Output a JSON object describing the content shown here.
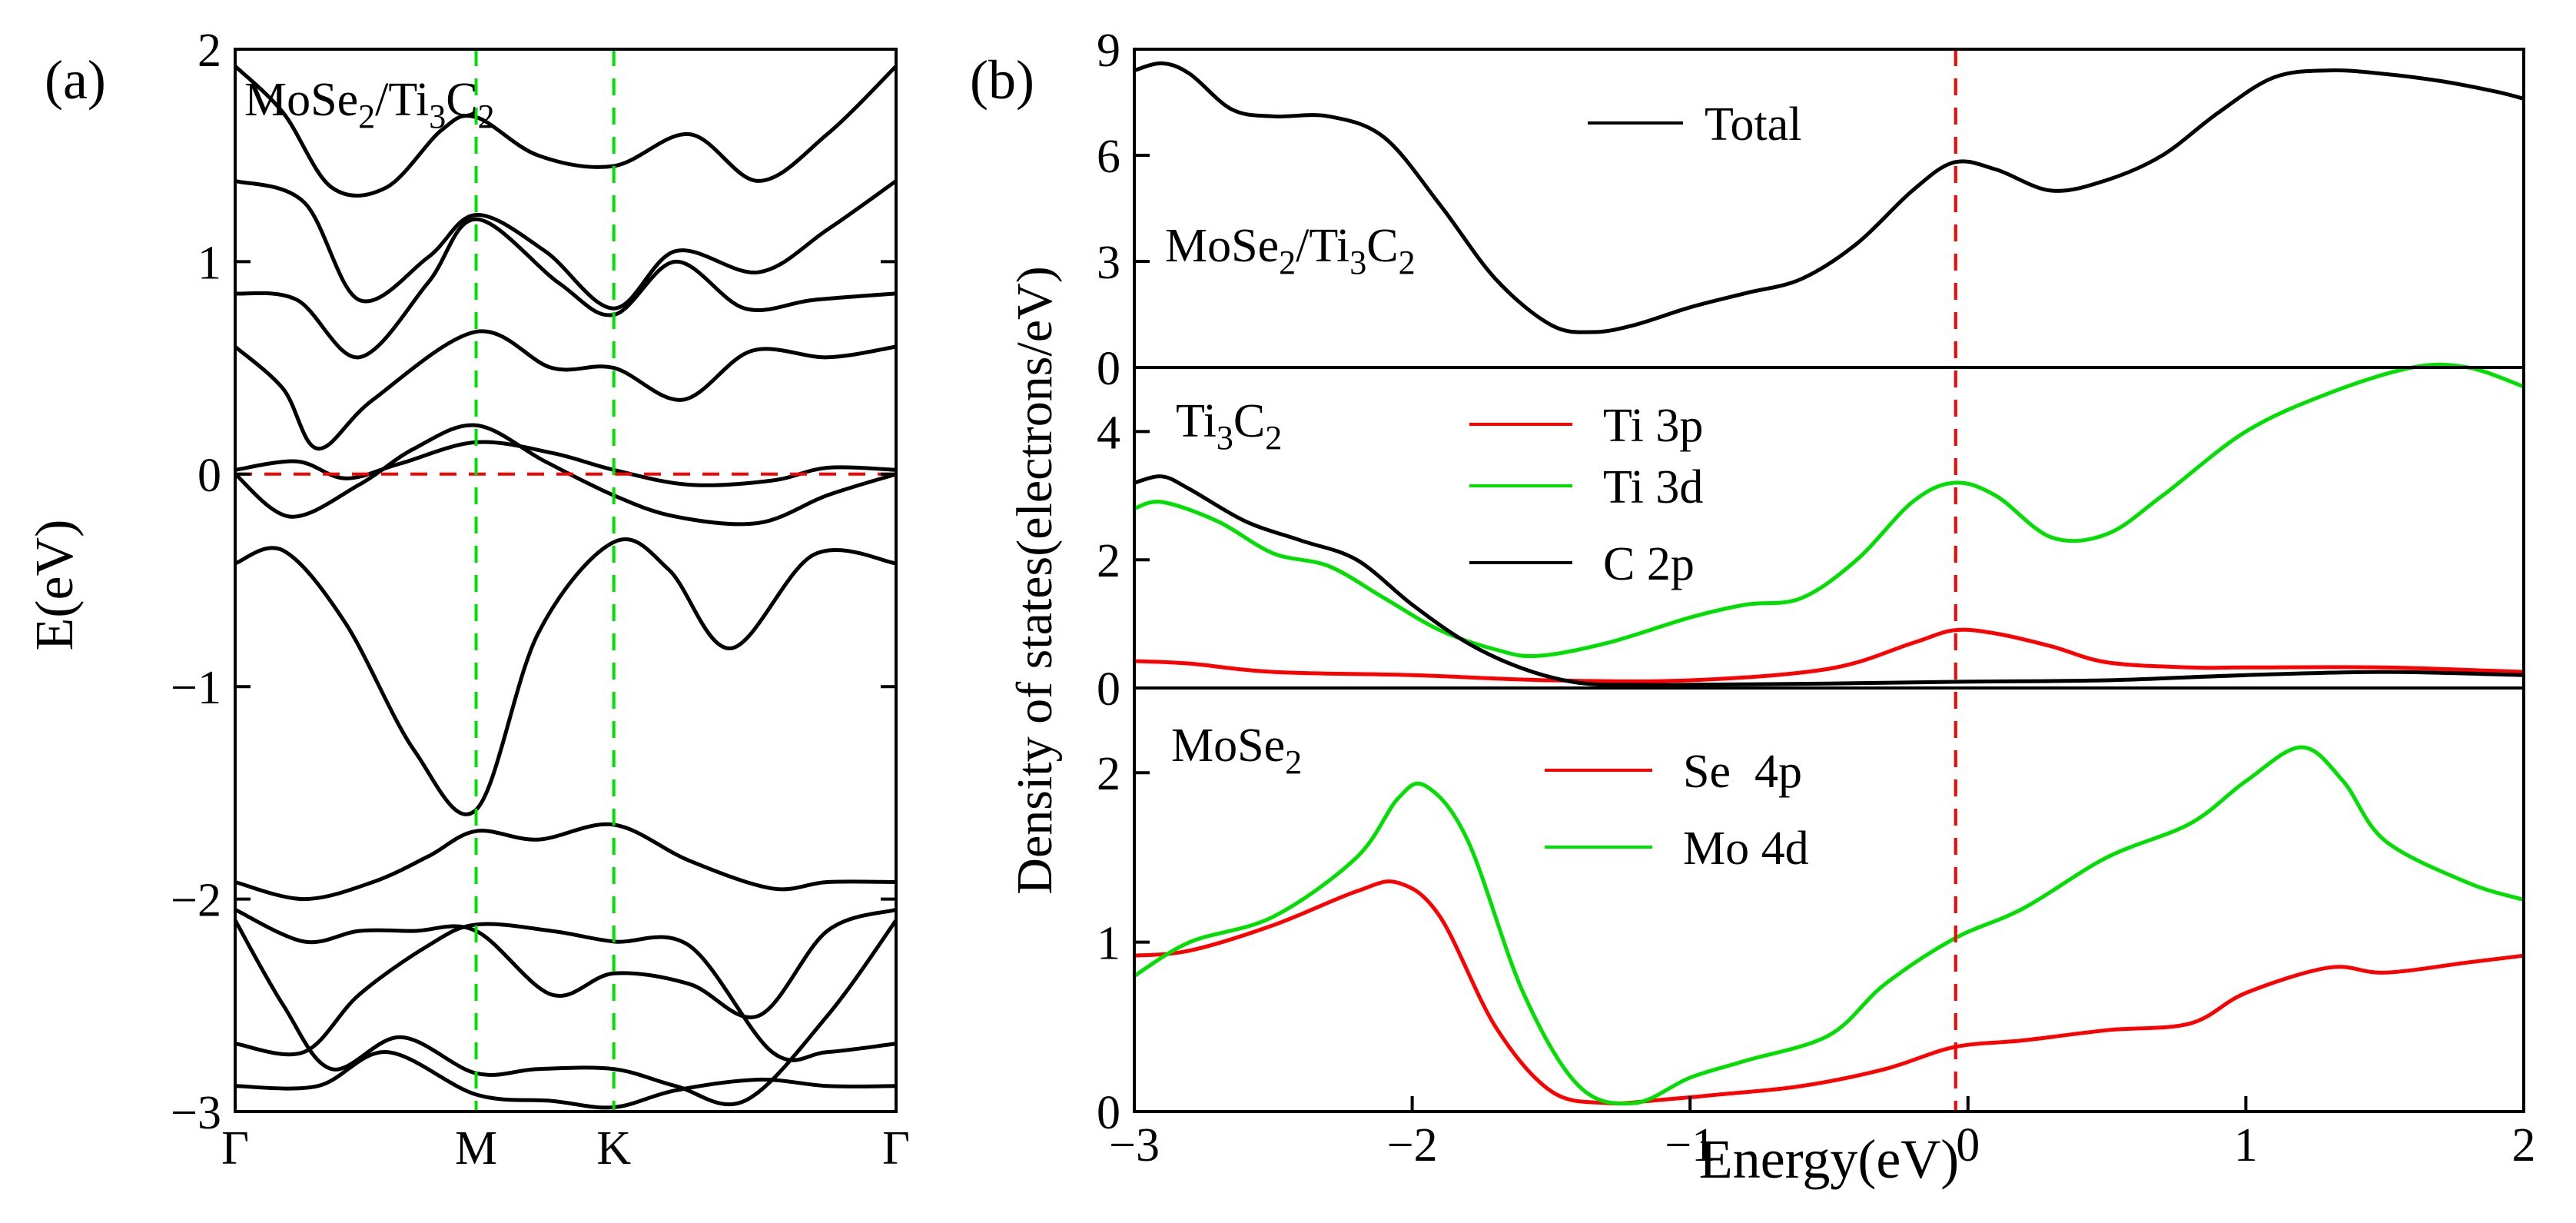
{
  "colors": {
    "black": "#000000",
    "red": "#ff0000",
    "green": "#00e000"
  },
  "chart_data": [
    {
      "type": "line",
      "panel_label": "(a)",
      "title": "MoSe2/Ti3C2",
      "title_parts": {
        "a": "MoSe",
        "a_sub": "2",
        "b": "/Ti",
        "b_sub": "3",
        "c": "C",
        "c_sub": "2"
      },
      "ylabel": "E(eV)",
      "ylim": [
        -3,
        2
      ],
      "yticks": [
        2,
        1,
        0,
        -1,
        -2,
        -3
      ],
      "ytick_labels": [
        "2",
        "1",
        "0",
        "−1",
        "−2",
        "−3"
      ],
      "xlim": [
        0,
        4.8
      ],
      "xticks": [
        0,
        1.75,
        2.75,
        4.8
      ],
      "xtick_labels": [
        "Γ",
        "M",
        "K",
        "Γ"
      ],
      "fermi_level": 0,
      "k_markers": [
        1.75,
        2.75
      ],
      "bands": [
        [
          [
            0,
            -0.42
          ],
          [
            0.35,
            -0.36
          ],
          [
            0.8,
            -0.7
          ],
          [
            1.3,
            -1.3
          ],
          [
            1.75,
            -1.58
          ],
          [
            2.2,
            -0.75
          ],
          [
            2.75,
            -0.32
          ],
          [
            3.15,
            -0.45
          ],
          [
            3.6,
            -0.82
          ],
          [
            4.2,
            -0.38
          ],
          [
            4.8,
            -0.42
          ]
        ],
        [
          [
            0,
            0
          ],
          [
            0.4,
            -0.2
          ],
          [
            0.9,
            -0.05
          ],
          [
            1.3,
            0.12
          ],
          [
            1.75,
            0.23
          ],
          [
            2.25,
            0.06
          ],
          [
            2.75,
            -0.1
          ],
          [
            3.2,
            -0.2
          ],
          [
            3.8,
            -0.23
          ],
          [
            4.3,
            -0.1
          ],
          [
            4.8,
            0
          ]
        ],
        [
          [
            0,
            0.02
          ],
          [
            0.45,
            0.06
          ],
          [
            0.8,
            -0.02
          ],
          [
            1.2,
            0.05
          ],
          [
            1.75,
            0.15
          ],
          [
            2.3,
            0.1
          ],
          [
            2.75,
            0.02
          ],
          [
            3.3,
            -0.05
          ],
          [
            3.9,
            -0.03
          ],
          [
            4.3,
            0.03
          ],
          [
            4.8,
            0.02
          ]
        ],
        [
          [
            0,
            0.6
          ],
          [
            0.35,
            0.4
          ],
          [
            0.6,
            0.12
          ],
          [
            1.0,
            0.35
          ],
          [
            1.75,
            0.67
          ],
          [
            2.3,
            0.5
          ],
          [
            2.75,
            0.5
          ],
          [
            3.25,
            0.35
          ],
          [
            3.75,
            0.58
          ],
          [
            4.3,
            0.55
          ],
          [
            4.8,
            0.6
          ]
        ],
        [
          [
            0,
            0.85
          ],
          [
            0.45,
            0.82
          ],
          [
            0.9,
            0.55
          ],
          [
            1.4,
            0.9
          ],
          [
            1.75,
            1.2
          ],
          [
            2.35,
            0.9
          ],
          [
            2.75,
            0.75
          ],
          [
            3.2,
            1.0
          ],
          [
            3.7,
            0.78
          ],
          [
            4.2,
            0.82
          ],
          [
            4.8,
            0.85
          ]
        ],
        [
          [
            0,
            1.38
          ],
          [
            0.5,
            1.28
          ],
          [
            0.9,
            0.82
          ],
          [
            1.4,
            1.02
          ],
          [
            1.75,
            1.22
          ],
          [
            2.25,
            1.05
          ],
          [
            2.75,
            0.78
          ],
          [
            3.2,
            1.05
          ],
          [
            3.8,
            0.95
          ],
          [
            4.3,
            1.15
          ],
          [
            4.8,
            1.38
          ]
        ],
        [
          [
            0,
            1.92
          ],
          [
            0.35,
            1.7
          ],
          [
            0.7,
            1.35
          ],
          [
            1.1,
            1.35
          ],
          [
            1.5,
            1.62
          ],
          [
            1.75,
            1.68
          ],
          [
            2.2,
            1.5
          ],
          [
            2.75,
            1.45
          ],
          [
            3.3,
            1.6
          ],
          [
            3.8,
            1.38
          ],
          [
            4.3,
            1.6
          ],
          [
            4.8,
            1.92
          ]
        ],
        [
          [
            0,
            -1.92
          ],
          [
            0.5,
            -2.0
          ],
          [
            1.0,
            -1.92
          ],
          [
            1.4,
            -1.8
          ],
          [
            1.75,
            -1.68
          ],
          [
            2.2,
            -1.72
          ],
          [
            2.75,
            -1.65
          ],
          [
            3.3,
            -1.82
          ],
          [
            3.9,
            -1.95
          ],
          [
            4.3,
            -1.92
          ],
          [
            4.8,
            -1.92
          ]
        ],
        [
          [
            0,
            -2.05
          ],
          [
            0.5,
            -2.2
          ],
          [
            0.9,
            -2.15
          ],
          [
            1.3,
            -2.15
          ],
          [
            1.75,
            -2.15
          ],
          [
            2.3,
            -2.45
          ],
          [
            2.75,
            -2.35
          ],
          [
            3.3,
            -2.4
          ],
          [
            3.8,
            -2.55
          ],
          [
            4.3,
            -2.15
          ],
          [
            4.8,
            -2.05
          ]
        ],
        [
          [
            0,
            -2.1
          ],
          [
            0.35,
            -2.5
          ],
          [
            0.7,
            -2.8
          ],
          [
            1.2,
            -2.65
          ],
          [
            1.75,
            -2.82
          ],
          [
            2.2,
            -2.8
          ],
          [
            2.75,
            -2.8
          ],
          [
            3.2,
            -2.88
          ],
          [
            3.7,
            -2.95
          ],
          [
            4.3,
            -2.55
          ],
          [
            4.8,
            -2.1
          ]
        ],
        [
          [
            0,
            -2.68
          ],
          [
            0.5,
            -2.72
          ],
          [
            0.9,
            -2.45
          ],
          [
            1.4,
            -2.22
          ],
          [
            1.75,
            -2.12
          ],
          [
            2.3,
            -2.15
          ],
          [
            2.75,
            -2.2
          ],
          [
            3.3,
            -2.22
          ],
          [
            3.9,
            -2.72
          ],
          [
            4.3,
            -2.72
          ],
          [
            4.8,
            -2.68
          ]
        ],
        [
          [
            0,
            -2.88
          ],
          [
            0.6,
            -2.88
          ],
          [
            1.1,
            -2.72
          ],
          [
            1.75,
            -2.92
          ],
          [
            2.3,
            -2.95
          ],
          [
            2.75,
            -2.98
          ],
          [
            3.2,
            -2.9
          ],
          [
            3.8,
            -2.85
          ],
          [
            4.3,
            -2.88
          ],
          [
            4.8,
            -2.88
          ]
        ]
      ]
    },
    {
      "type": "line",
      "panel_label": "(b)",
      "xlabel": "Energy(eV)",
      "ylabel": "Density of states(electrons/eV)",
      "xlim": [
        -3,
        2
      ],
      "xticks": [
        -3,
        -2,
        -1,
        0,
        1,
        2
      ],
      "xtick_labels": [
        "−3",
        "−2",
        "−1",
        "0",
        "1",
        "2"
      ],
      "fermi_level": 0,
      "subplots": [
        {
          "name": "total",
          "ylim": [
            0,
            9
          ],
          "yticks": [
            0,
            3,
            6,
            9
          ],
          "ytick_labels": [
            "0",
            "3",
            "6",
            "9"
          ],
          "label": "MoSe2/Ti3C2",
          "label_parts": {
            "a": "MoSe",
            "a_sub": "2",
            "b": "/Ti",
            "b_sub": "3",
            "c": "C",
            "c_sub": "2"
          },
          "series": [
            {
              "name": "Total",
              "color": "#000000",
              "x": [
                -3.0,
                -2.9,
                -2.8,
                -2.65,
                -2.5,
                -2.3,
                -2.1,
                -1.9,
                -1.7,
                -1.5,
                -1.35,
                -1.2,
                -1.0,
                -0.8,
                -0.6,
                -0.4,
                -0.2,
                -0.05,
                0.1,
                0.3,
                0.5,
                0.7,
                0.9,
                1.1,
                1.3,
                1.5,
                1.7,
                1.9,
                2.0
              ],
              "y": [
                8.4,
                8.6,
                8.3,
                7.3,
                7.1,
                7.1,
                6.5,
                4.6,
                2.5,
                1.2,
                1.0,
                1.2,
                1.7,
                2.1,
                2.5,
                3.5,
                5.0,
                5.8,
                5.6,
                5.0,
                5.3,
                6.0,
                7.2,
                8.2,
                8.4,
                8.3,
                8.1,
                7.8,
                7.6
              ]
            }
          ]
        },
        {
          "name": "ti3c2",
          "ylim": [
            0,
            5
          ],
          "yticks": [
            0,
            2,
            4
          ],
          "ytick_labels": [
            "0",
            "2",
            "4"
          ],
          "top_label": "0",
          "label": "Ti3C2",
          "label_parts": {
            "a": "Ti",
            "a_sub": "3",
            "b": "C",
            "b_sub": "2"
          },
          "series": [
            {
              "name": "Ti 3p",
              "color": "#ff0000",
              "x": [
                -3.0,
                -2.8,
                -2.5,
                -2.0,
                -1.5,
                -1.0,
                -0.5,
                -0.2,
                -0.05,
                0.1,
                0.3,
                0.5,
                0.8,
                1.0,
                1.5,
                2.0
              ],
              "y": [
                0.42,
                0.38,
                0.25,
                0.2,
                0.12,
                0.12,
                0.3,
                0.7,
                0.9,
                0.85,
                0.65,
                0.4,
                0.32,
                0.32,
                0.32,
                0.25
              ]
            },
            {
              "name": "Ti 3d",
              "color": "#00e000",
              "x": [
                -3.0,
                -2.9,
                -2.7,
                -2.5,
                -2.3,
                -2.1,
                -1.9,
                -1.7,
                -1.55,
                -1.3,
                -1.0,
                -0.8,
                -0.6,
                -0.4,
                -0.2,
                -0.05,
                0.1,
                0.3,
                0.5,
                0.7,
                1.0,
                1.3,
                1.6,
                1.8,
                2.0
              ],
              "y": [
                2.8,
                2.9,
                2.6,
                2.1,
                1.9,
                1.4,
                0.9,
                0.6,
                0.5,
                0.7,
                1.1,
                1.3,
                1.4,
                2.0,
                2.9,
                3.2,
                3.0,
                2.35,
                2.4,
                3.0,
                4.0,
                4.6,
                5.1,
                5.0,
                4.7
              ]
            },
            {
              "name": "C 2p",
              "color": "#000000",
              "x": [
                -3.0,
                -2.9,
                -2.8,
                -2.6,
                -2.4,
                -2.2,
                -2.0,
                -1.8,
                -1.6,
                -1.4,
                -1.2,
                -1.0,
                -0.5,
                0.0,
                0.5,
                1.0,
                1.5,
                2.0
              ],
              "y": [
                3.2,
                3.3,
                3.1,
                2.6,
                2.3,
                2.0,
                1.3,
                0.7,
                0.3,
                0.08,
                0.05,
                0.05,
                0.07,
                0.1,
                0.12,
                0.2,
                0.25,
                0.2
              ]
            }
          ]
        },
        {
          "name": "mose2",
          "ylim": [
            0,
            2.5
          ],
          "yticks": [
            0,
            1,
            2
          ],
          "ytick_labels": [
            "0",
            "1",
            "2"
          ],
          "label": "MoSe2",
          "label_parts": {
            "a": "MoSe",
            "a_sub": "2"
          },
          "series": [
            {
              "name": "Se  4p",
              "color": "#ff0000",
              "x": [
                -3.0,
                -2.8,
                -2.5,
                -2.2,
                -2.05,
                -1.9,
                -1.7,
                -1.5,
                -1.3,
                -1.1,
                -0.9,
                -0.6,
                -0.3,
                -0.05,
                0.2,
                0.5,
                0.8,
                1.0,
                1.3,
                1.5,
                1.8,
                2.0
              ],
              "y": [
                0.92,
                0.95,
                1.1,
                1.3,
                1.35,
                1.15,
                0.5,
                0.12,
                0.05,
                0.07,
                0.1,
                0.15,
                0.25,
                0.38,
                0.42,
                0.48,
                0.52,
                0.7,
                0.85,
                0.82,
                0.88,
                0.92
              ]
            },
            {
              "name": "Mo 4d",
              "color": "#00e000",
              "x": [
                -3.0,
                -2.8,
                -2.5,
                -2.2,
                -2.05,
                -1.95,
                -1.8,
                -1.6,
                -1.4,
                -1.2,
                -1.0,
                -0.8,
                -0.5,
                -0.3,
                -0.05,
                0.2,
                0.5,
                0.8,
                1.0,
                1.2,
                1.35,
                1.5,
                1.8,
                2.0
              ],
              "y": [
                0.8,
                1.0,
                1.15,
                1.5,
                1.85,
                1.92,
                1.6,
                0.7,
                0.15,
                0.05,
                0.2,
                0.3,
                0.45,
                0.75,
                1.02,
                1.2,
                1.5,
                1.7,
                1.95,
                2.15,
                1.95,
                1.6,
                1.35,
                1.25
              ]
            }
          ]
        }
      ]
    }
  ]
}
